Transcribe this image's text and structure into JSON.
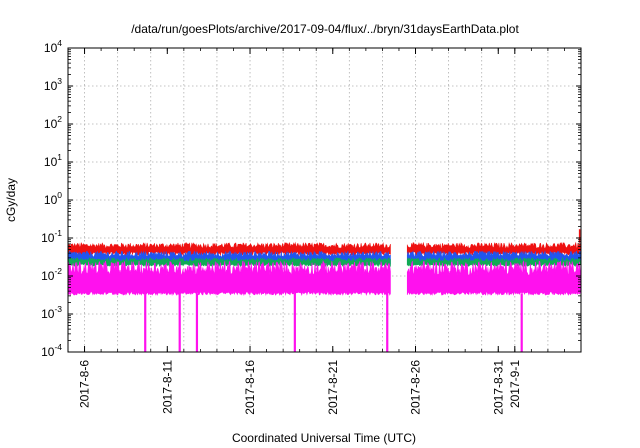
{
  "chart_data": {
    "type": "area",
    "title": "/data/run/goesPlots/archive/2017-09-04/flux/../bryn/31daysEarthData.plot",
    "xlabel": "Coordinated Universal Time (UTC)",
    "ylabel": "cGy/day",
    "yscale": "log",
    "ylim": [
      0.0001,
      10000
    ],
    "xlim": [
      "2017-08-05",
      "2017-09-05"
    ],
    "grid": true,
    "y_ticks": [
      {
        "base": "10",
        "exp": "-4"
      },
      {
        "base": "10",
        "exp": "-3"
      },
      {
        "base": "10",
        "exp": "-2"
      },
      {
        "base": "10",
        "exp": "-1"
      },
      {
        "base": "10",
        "exp": "0"
      },
      {
        "base": "10",
        "exp": "1"
      },
      {
        "base": "10",
        "exp": "2"
      },
      {
        "base": "10",
        "exp": "3"
      },
      {
        "base": "10",
        "exp": "4"
      }
    ],
    "x_ticks": [
      {
        "label": "2017-8-6",
        "date": "2017-08-06"
      },
      {
        "label": "2017-8-11",
        "date": "2017-08-11"
      },
      {
        "label": "2017-8-16",
        "date": "2017-08-16"
      },
      {
        "label": "2017-8-21",
        "date": "2017-08-21"
      },
      {
        "label": "2017-8-26",
        "date": "2017-08-26"
      },
      {
        "label": "2017-8-31",
        "date": "2017-08-31"
      },
      {
        "label": "2017-9-1",
        "date": "2017-09-01"
      }
    ],
    "data_gap": [
      "2017-08-24T12:00",
      "2017-08-25T12:00"
    ],
    "series": [
      {
        "color": "#ee1111",
        "typical_min": 0.035,
        "typical_max": 0.075,
        "peak": 0.17
      },
      {
        "color": "#2255ee",
        "typical_min": 0.02,
        "typical_max": 0.045
      },
      {
        "color": "#11aa55",
        "typical_min": 0.018,
        "typical_max": 0.03
      },
      {
        "color": "#ff11ee",
        "typical_min": 0.0035,
        "typical_max": 0.025,
        "dropouts": [
          "2017-08-09T16:00",
          "2017-08-11T18:00",
          "2017-08-12T19:00",
          "2017-08-18T17:00",
          "2017-08-24T07:00",
          "2017-09-01T10:00"
        ]
      }
    ]
  }
}
